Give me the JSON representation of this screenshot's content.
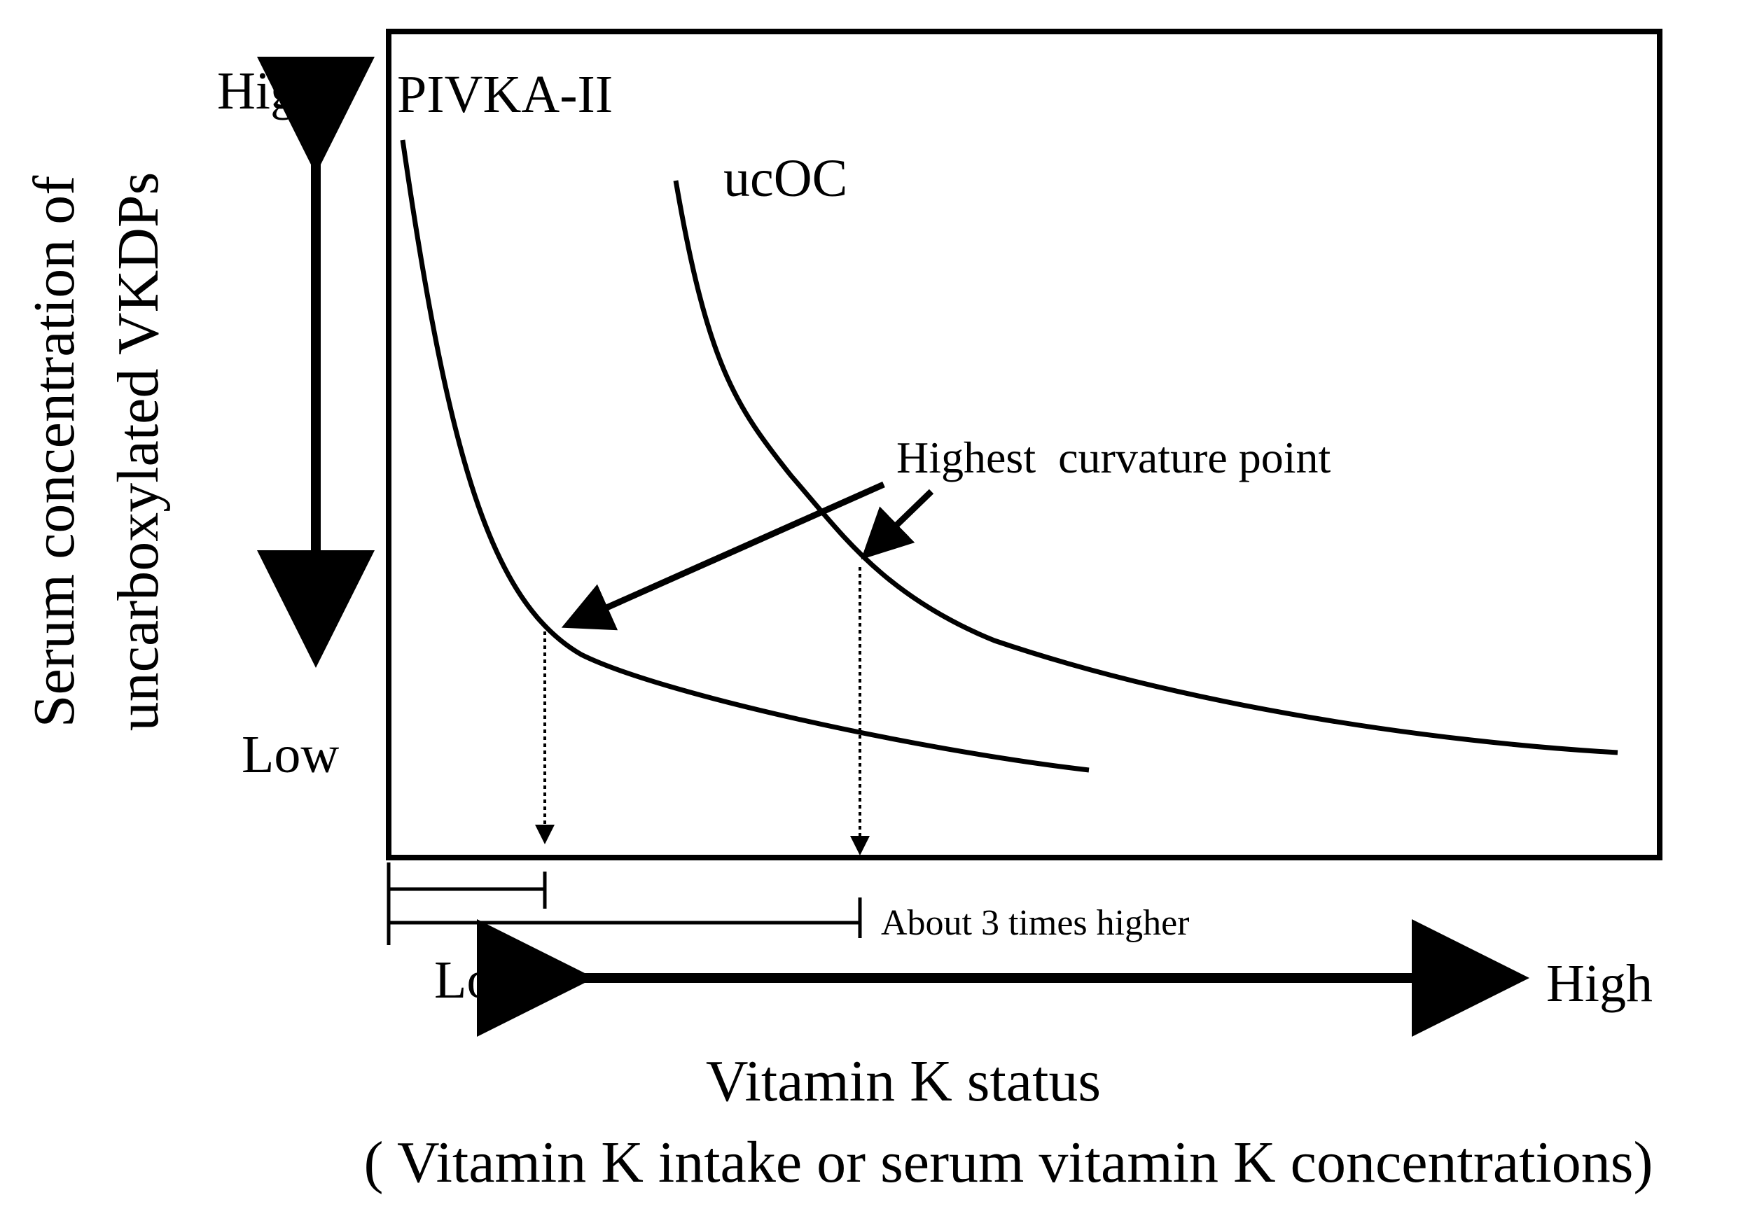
{
  "figure": {
    "y_axis": {
      "label_line1": "Serum concentration of",
      "label_line2": "uncarboxylated VKDPs",
      "high": "High",
      "low": "Low"
    },
    "x_axis": {
      "label": "Vitamin K status",
      "sublabel": "( Vitamin K intake or serum vitamin K concentrations)",
      "low": "Low",
      "high": "High"
    },
    "curves": [
      {
        "name": "PIVKA-II"
      },
      {
        "name": "ucOC"
      }
    ],
    "annotation": "Highest  curvature point",
    "bracket_note": "About 3 times higher",
    "colors": {
      "ink": "#000000",
      "background": "#ffffff"
    }
  }
}
